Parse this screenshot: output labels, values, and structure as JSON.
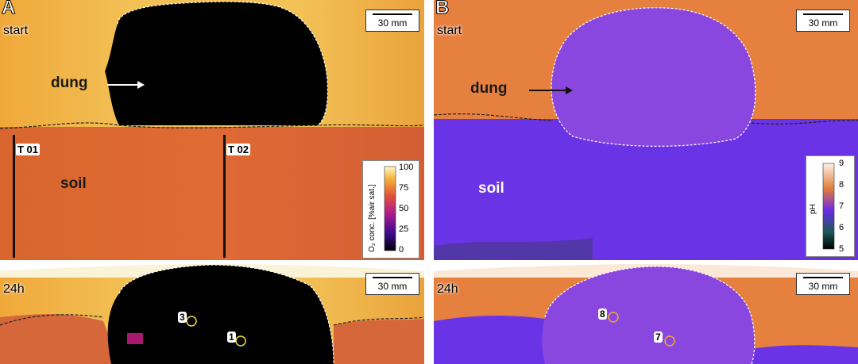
{
  "panel_a": {
    "letter": "A",
    "time_start": "start",
    "time_24h": "24h",
    "scale_label": "30 mm",
    "dung_label": "dung",
    "soil_label": "soil",
    "transect_1": "T 01",
    "transect_2": "T 02",
    "colorbar": {
      "title": "O₂ conc. [%air sat.]",
      "ticks": [
        "100",
        "75",
        "50",
        "25",
        "0"
      ]
    },
    "spots": [
      "3",
      "1"
    ]
  },
  "panel_b": {
    "letter": "B",
    "time_start": "start",
    "time_24h": "24h",
    "scale_label": "30 mm",
    "dung_label": "dung",
    "soil_label": "soil",
    "colorbar": {
      "title": "pH",
      "ticks": [
        "9",
        "8",
        "7",
        "6",
        "5"
      ]
    },
    "spots": [
      "8",
      "7"
    ]
  }
}
